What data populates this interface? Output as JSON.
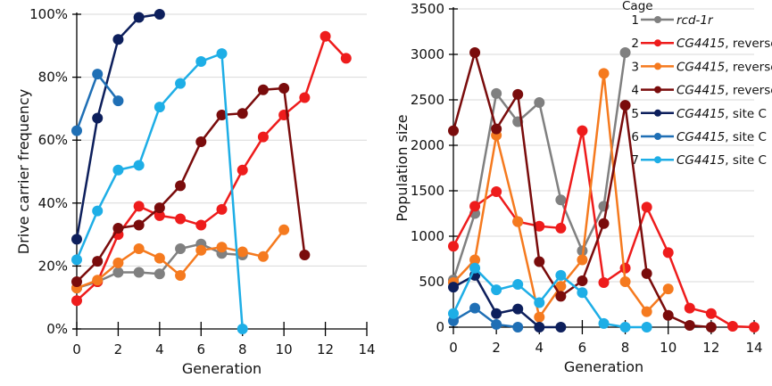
{
  "legend": {
    "title": "Cage",
    "entries": [
      {
        "num": "1",
        "gene": "rcd-1r",
        "suffix": ""
      },
      {
        "num": "2",
        "gene": "CG4415",
        "suffix": ", reverse"
      },
      {
        "num": "3",
        "gene": "CG4415",
        "suffix": ", reverse"
      },
      {
        "num": "4",
        "gene": "CG4415",
        "suffix": ", reverse"
      },
      {
        "num": "5",
        "gene": "CG4415",
        "suffix": ", site C"
      },
      {
        "num": "6",
        "gene": "CG4415",
        "suffix": ", site C"
      },
      {
        "num": "7",
        "gene": "CG4415",
        "suffix": ", site C"
      }
    ],
    "placement": "top-right of right chart"
  },
  "chart_data": [
    {
      "type": "line",
      "xlabel": "Generation",
      "ylabel": "Drive carrier frequency",
      "xlim": [
        0,
        14
      ],
      "ylim": [
        0,
        100
      ],
      "xticks": [
        "0",
        "2",
        "4",
        "6",
        "8",
        "10",
        "12",
        "14"
      ],
      "yticks": [
        "0%",
        "20%",
        "40%",
        "60%",
        "80%",
        "100%"
      ],
      "grid": "horizontal",
      "series": [
        {
          "cage": "1",
          "color": "#808080",
          "x": [
            0,
            1,
            2,
            3,
            4,
            5,
            6,
            7,
            8
          ],
          "y": [
            13,
            15,
            18,
            18,
            17.5,
            25.5,
            27,
            24,
            23.5
          ]
        },
        {
          "cage": "2",
          "color": "#ee1c1c",
          "x": [
            0,
            1,
            2,
            3,
            4,
            5,
            6,
            7,
            8,
            9,
            10,
            11,
            12,
            13
          ],
          "y": [
            9,
            15,
            30,
            39,
            36,
            35,
            33,
            38,
            50.5,
            61,
            68,
            73.5,
            93,
            86
          ]
        },
        {
          "cage": "3",
          "color": "#f57a1f",
          "x": [
            0,
            1,
            2,
            3,
            4,
            5,
            6,
            7,
            8,
            9,
            10
          ],
          "y": [
            13,
            15.5,
            21,
            25.5,
            22.5,
            17,
            25,
            26,
            24.5,
            23,
            31.5
          ]
        },
        {
          "cage": "4",
          "color": "#7a0c0c",
          "x": [
            0,
            1,
            2,
            3,
            4,
            5,
            6,
            7,
            8,
            9,
            10,
            11
          ],
          "y": [
            15,
            21.5,
            32,
            33,
            38.5,
            45.5,
            59.5,
            68,
            68.5,
            76,
            76.5,
            23.5
          ]
        },
        {
          "cage": "5",
          "color": "#0d1f5c",
          "x": [
            0,
            1,
            2,
            3,
            4
          ],
          "y": [
            28.5,
            67,
            92,
            99,
            100
          ]
        },
        {
          "cage": "6",
          "color": "#1f6fb5",
          "x": [
            0,
            1,
            2
          ],
          "y": [
            63,
            81,
            72.5
          ]
        },
        {
          "cage": "7",
          "color": "#1eaee6",
          "x": [
            0,
            1,
            2,
            3,
            4,
            5,
            6,
            7,
            8
          ],
          "y": [
            22,
            37.5,
            50.5,
            52,
            70.5,
            78,
            85,
            87.5,
            0
          ]
        }
      ]
    },
    {
      "type": "line",
      "xlabel": "Generation",
      "ylabel": "Population size",
      "xlim": [
        0,
        14
      ],
      "ylim": [
        0,
        3500
      ],
      "xticks": [
        "0",
        "2",
        "4",
        "6",
        "8",
        "10",
        "12",
        "14"
      ],
      "yticks": [
        "0",
        "500",
        "1000",
        "1500",
        "2000",
        "2500",
        "3000",
        "3500"
      ],
      "grid": "horizontal",
      "series": [
        {
          "cage": "1",
          "color": "#808080",
          "x": [
            0,
            1,
            2,
            3,
            4,
            5,
            6,
            7,
            8
          ],
          "y": [
            520,
            1250,
            2570,
            2260,
            2470,
            1400,
            840,
            1330,
            3020
          ]
        },
        {
          "cage": "2",
          "color": "#ee1c1c",
          "x": [
            0,
            1,
            2,
            3,
            4,
            5,
            6,
            7,
            8,
            9,
            10,
            11,
            12,
            13,
            14
          ],
          "y": [
            890,
            1330,
            1490,
            1160,
            1110,
            1090,
            2160,
            490,
            650,
            1320,
            820,
            210,
            150,
            10,
            0
          ]
        },
        {
          "cage": "3",
          "color": "#f57a1f",
          "x": [
            0,
            1,
            2,
            3,
            4,
            5,
            6,
            7,
            8,
            9,
            10
          ],
          "y": [
            490,
            740,
            2110,
            1160,
            110,
            450,
            740,
            2790,
            500,
            170,
            420
          ]
        },
        {
          "cage": "4",
          "color": "#7a0c0c",
          "x": [
            0,
            1,
            2,
            3,
            4,
            5,
            6,
            7,
            8,
            9,
            10,
            11,
            12
          ],
          "y": [
            2160,
            3020,
            2180,
            2560,
            720,
            340,
            510,
            1140,
            2440,
            590,
            130,
            20,
            0
          ]
        },
        {
          "cage": "5",
          "color": "#0d1f5c",
          "x": [
            0,
            1,
            2,
            3,
            4,
            5
          ],
          "y": [
            440,
            570,
            150,
            200,
            0,
            0
          ]
        },
        {
          "cage": "6",
          "color": "#1f6fb5",
          "x": [
            0,
            1,
            2,
            3
          ],
          "y": [
            70,
            210,
            30,
            0
          ]
        },
        {
          "cage": "7",
          "color": "#1eaee6",
          "x": [
            0,
            1,
            2,
            3,
            4,
            5,
            6,
            7,
            8,
            9
          ],
          "y": [
            150,
            650,
            410,
            470,
            270,
            570,
            380,
            40,
            0,
            0
          ]
        }
      ]
    }
  ]
}
